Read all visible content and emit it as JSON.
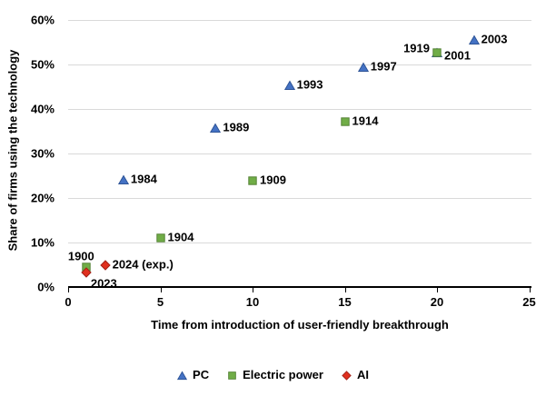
{
  "chart_data": {
    "type": "scatter",
    "title": "",
    "xlabel": "Time from introduction of user-friendly breakthrough",
    "ylabel": "Share of firms using the technology",
    "xlim": [
      0,
      25
    ],
    "ylim": [
      0,
      60
    ],
    "xticks": [
      0,
      5,
      10,
      15,
      20,
      25
    ],
    "yticks": [
      0,
      10,
      20,
      30,
      40,
      50,
      60
    ],
    "ytick_suffix": "%",
    "grid": "horizontal-only",
    "gridline_color": "#d9d9d9",
    "axis_color": "#000000",
    "legend_position": "bottom-center",
    "series": [
      {
        "name": "PC",
        "marker": "triangle",
        "color": "#4472c4",
        "edge_color": "#2f5597",
        "points": [
          {
            "x": 3,
            "y": 24.2,
            "label": "1984",
            "label_pos": "right"
          },
          {
            "x": 8,
            "y": 35.8,
            "label": "1989",
            "label_pos": "right"
          },
          {
            "x": 12,
            "y": 45.4,
            "label": "1993",
            "label_pos": "right"
          },
          {
            "x": 16,
            "y": 49.5,
            "label": "1997",
            "label_pos": "right"
          },
          {
            "x": 20,
            "y": 52.8,
            "label": "2001",
            "label_pos": "right",
            "dy": 4
          },
          {
            "x": 22,
            "y": 55.6,
            "label": "2003",
            "label_pos": "right"
          }
        ]
      },
      {
        "name": "Electric power",
        "marker": "square",
        "color": "#70ad47",
        "edge_color": "#548235",
        "points": [
          {
            "x": 1,
            "y": 4.6,
            "label": "1900",
            "label_pos": "above-left"
          },
          {
            "x": 5,
            "y": 11.3,
            "label": "1904",
            "label_pos": "right"
          },
          {
            "x": 10,
            "y": 24.1,
            "label": "1909",
            "label_pos": "right"
          },
          {
            "x": 15,
            "y": 37.4,
            "label": "1914",
            "label_pos": "right"
          },
          {
            "x": 20,
            "y": 52.8,
            "label": "1919",
            "label_pos": "left",
            "dy": -4
          }
        ]
      },
      {
        "name": "AI",
        "marker": "diamond",
        "color": "#e0301e",
        "edge_color": "#a32017",
        "points": [
          {
            "x": 1,
            "y": 3.4,
            "label": "2023",
            "label_pos": "below-right"
          },
          {
            "x": 2,
            "y": 5.1,
            "label": "2024 (exp.)",
            "label_pos": "right"
          }
        ]
      }
    ]
  }
}
